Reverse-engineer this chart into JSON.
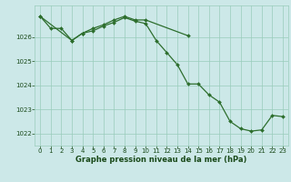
{
  "series1": {
    "x": [
      0,
      1,
      2,
      3,
      4,
      5,
      6,
      7,
      8,
      9,
      10,
      14
    ],
    "y": [
      1026.85,
      1026.35,
      1026.35,
      1025.85,
      1026.15,
      1026.35,
      1026.5,
      1026.7,
      1026.85,
      1026.7,
      1026.7,
      1026.05
    ]
  },
  "series2": {
    "x": [
      0,
      3,
      4,
      5,
      6,
      7,
      8,
      9,
      10,
      11,
      12,
      13,
      14,
      15,
      16,
      17,
      18,
      19,
      20,
      21,
      22,
      23
    ],
    "y": [
      1026.85,
      1025.85,
      1026.15,
      1026.25,
      1026.45,
      1026.6,
      1026.8,
      1026.65,
      1026.55,
      1025.85,
      1025.35,
      1024.85,
      1024.05,
      1024.05,
      1023.6,
      1023.3,
      1022.5,
      1022.2,
      1022.1,
      1022.15,
      1022.75,
      1022.7
    ]
  },
  "xlim": [
    -0.5,
    23.5
  ],
  "ylim": [
    1021.5,
    1027.3
  ],
  "yticks": [
    1022,
    1023,
    1024,
    1025,
    1026
  ],
  "xticks": [
    0,
    1,
    2,
    3,
    4,
    5,
    6,
    7,
    8,
    9,
    10,
    11,
    12,
    13,
    14,
    15,
    16,
    17,
    18,
    19,
    20,
    21,
    22,
    23
  ],
  "xlabel": "Graphe pression niveau de la mer (hPa)",
  "line_color": "#2d6e2d",
  "marker": "D",
  "markersize": 2.0,
  "bg_color": "#cce8e8",
  "grid_color": "#99ccbb",
  "label_color": "#1a4a1a",
  "tick_fontsize": 5.0,
  "xlabel_fontsize": 6.0,
  "linewidth": 0.9
}
